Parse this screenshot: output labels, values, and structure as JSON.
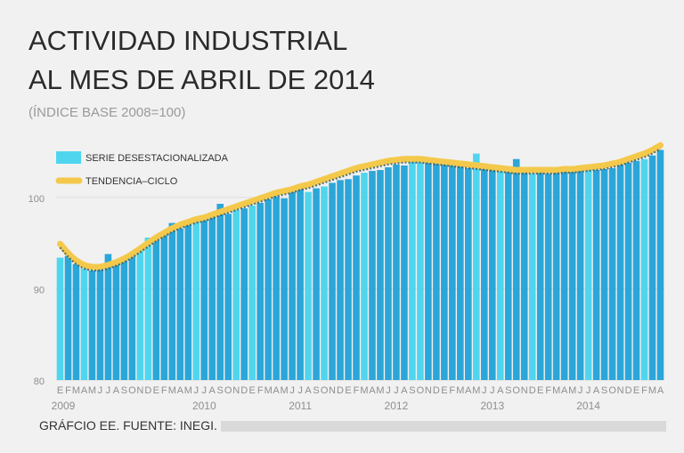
{
  "chart_data": {
    "type": "bar",
    "title_line1": "ACTIVIDAD INDUSTRIAL",
    "title_line2": "AL MES DE ABRIL DE 2014",
    "subtitle": "(ÍNDICE BASE 2008=100)",
    "source": "GRÁFCIO EE. FUENTE: INEGI.",
    "ylim": [
      80,
      107
    ],
    "yticks": [
      80,
      90,
      100
    ],
    "legend": {
      "bars": "SERIE DESESTACIONALIZADA",
      "line": "TENDENCIA–CICLO"
    },
    "month_labels": [
      "E",
      "F",
      "M",
      "A",
      "M",
      "J",
      "J",
      "A",
      "S",
      "O",
      "N",
      "D"
    ],
    "year_labels": [
      "2009",
      "2010",
      "2011",
      "2012",
      "2013",
      "2014"
    ],
    "colors": {
      "bar": "#2ba6d8",
      "bar_highlight": "#4fd6ee",
      "trend": "#f4c94b",
      "trend_core": "#3c5f66",
      "grid": "#ffffff"
    },
    "series": [
      {
        "name": "SERIE DESESTACIONALIZADA",
        "values": [
          93.4,
          93.6,
          92.7,
          92.2,
          92.0,
          92.1,
          93.8,
          92.8,
          93.2,
          93.8,
          94.3,
          95.6,
          95.3,
          96.0,
          97.2,
          96.6,
          97.0,
          97.3,
          97.5,
          98.0,
          99.3,
          98.2,
          98.6,
          98.8,
          99.1,
          99.4,
          99.8,
          100.1,
          99.9,
          100.6,
          101.0,
          100.6,
          101.0,
          101.2,
          101.6,
          101.9,
          102.0,
          102.4,
          102.7,
          102.9,
          103.0,
          103.3,
          103.6,
          103.5,
          103.9,
          104.0,
          103.9,
          103.9,
          103.7,
          103.7,
          103.5,
          103.2,
          104.8,
          103.5,
          103.3,
          103.0,
          103.3,
          104.2,
          103.0,
          102.6,
          102.8,
          102.6,
          102.8,
          102.9,
          103.0,
          103.5,
          103.0,
          103.0,
          103.1,
          103.2,
          103.6,
          103.8,
          104.0,
          104.2,
          104.6,
          105.2
        ]
      },
      {
        "name": "TENDENCIA–CICLO",
        "values": [
          94.9,
          93.9,
          93.1,
          92.6,
          92.4,
          92.4,
          92.6,
          92.9,
          93.3,
          93.8,
          94.4,
          95.0,
          95.6,
          96.1,
          96.6,
          97.0,
          97.3,
          97.6,
          97.8,
          98.1,
          98.4,
          98.7,
          99.0,
          99.3,
          99.6,
          99.9,
          100.2,
          100.5,
          100.7,
          100.9,
          101.2,
          101.4,
          101.7,
          102.0,
          102.3,
          102.6,
          102.9,
          103.2,
          103.4,
          103.6,
          103.8,
          104.0,
          104.1,
          104.2,
          104.2,
          104.2,
          104.1,
          104.0,
          103.9,
          103.8,
          103.7,
          103.6,
          103.5,
          103.4,
          103.3,
          103.2,
          103.1,
          103.0,
          103.0,
          103.0,
          103.0,
          103.0,
          103.0,
          103.1,
          103.1,
          103.2,
          103.3,
          103.4,
          103.5,
          103.7,
          103.9,
          104.2,
          104.5,
          104.8,
          105.2,
          105.7
        ]
      }
    ]
  }
}
